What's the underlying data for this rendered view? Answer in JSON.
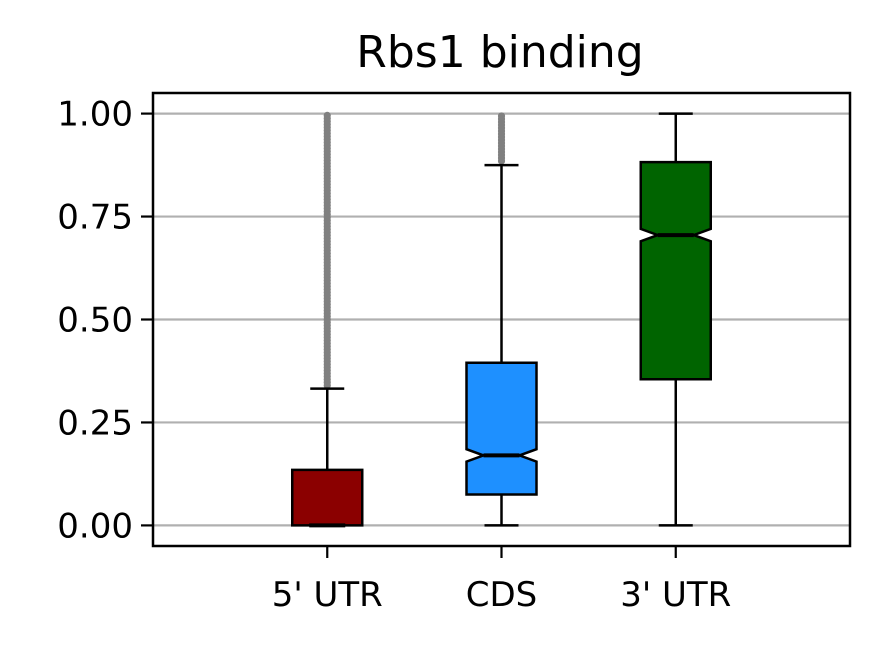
{
  "chart_data": {
    "type": "box",
    "title": "Rbs1 binding",
    "xlabel": "",
    "ylabel": "",
    "ylim": [
      -0.05,
      1.05
    ],
    "yticks": [
      0.0,
      0.25,
      0.5,
      0.75,
      1.0
    ],
    "ytick_labels": [
      "0.00",
      "0.25",
      "0.50",
      "0.75",
      "1.00"
    ],
    "grid": "horizontal",
    "categories": [
      "5' UTR",
      "CDS",
      "3' UTR"
    ],
    "boxes": [
      {
        "category": "5' UTR",
        "color": "#8b0000",
        "whisker_low": 0.0,
        "q1": 0.0,
        "median": 0.0,
        "q3": 0.135,
        "whisker_high": 0.332,
        "notch": [
          0.0,
          0.0
        ],
        "outliers_range": [
          0.34,
          1.0
        ]
      },
      {
        "category": "CDS",
        "color": "#1e90ff",
        "whisker_low": 0.0,
        "q1": 0.075,
        "median": 0.17,
        "q3": 0.395,
        "whisker_high": 0.875,
        "notch": [
          0.155,
          0.185
        ],
        "outliers_range": [
          0.885,
          1.0
        ]
      },
      {
        "category": "3' UTR",
        "color": "#006400",
        "whisker_low": 0.0,
        "q1": 0.355,
        "median": 0.705,
        "q3": 0.882,
        "whisker_high": 1.0,
        "notch": [
          0.69,
          0.72
        ],
        "outliers_range": null
      }
    ],
    "outlier_color": "#808080"
  }
}
